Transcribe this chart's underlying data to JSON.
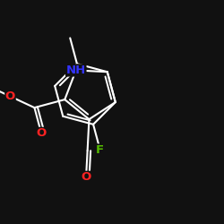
{
  "background_color": "#111111",
  "bond_color": "#ffffff",
  "bond_width": 1.5,
  "atom_colors": {
    "F": "#55bb00",
    "O": "#ff2222",
    "N": "#3333ff"
  },
  "figsize": [
    2.5,
    2.5
  ],
  "dpi": 100
}
